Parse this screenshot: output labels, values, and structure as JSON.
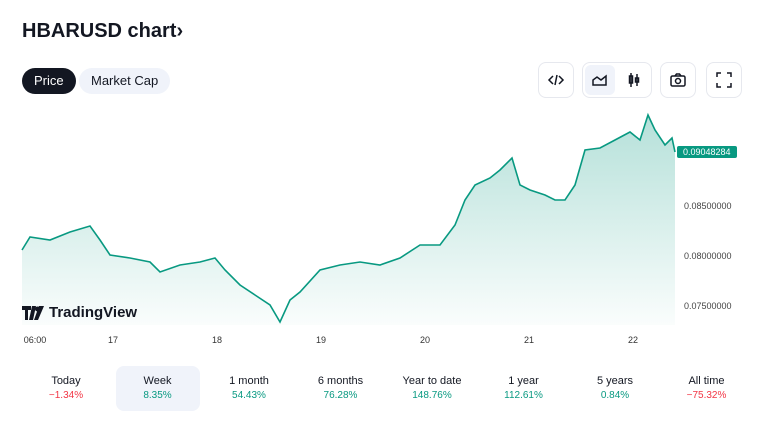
{
  "header": {
    "title": "HBARUSD chart›"
  },
  "tabs": [
    {
      "label": "Price",
      "active": true
    },
    {
      "label": "Market Cap",
      "active": false
    }
  ],
  "toolbar": [
    "code-icon",
    "area-chart-icon",
    "candles-icon",
    "camera-icon",
    "fullscreen-icon"
  ],
  "branding": "TradingView",
  "chart_data": {
    "type": "area",
    "x_ticks": [
      {
        "x": 16.25,
        "label": "06:00"
      },
      {
        "x": 17,
        "label": "17"
      },
      {
        "x": 18,
        "label": "18"
      },
      {
        "x": 19,
        "label": "19"
      },
      {
        "x": 20,
        "label": "20"
      },
      {
        "x": 21,
        "label": "21"
      },
      {
        "x": 22,
        "label": "22"
      }
    ],
    "y_ticks": [
      "0.07500000",
      "0.08000000",
      "0.08500000"
    ],
    "y_tick_values": [
      0.075,
      0.08,
      0.085
    ],
    "ylim": [
      0.0725,
      0.0945
    ],
    "xlim": [
      16.0,
      23.2
    ],
    "last_price": "0.09048284",
    "color": "#089981",
    "points": [
      [
        16.125,
        0.0807
      ],
      [
        16.202,
        0.082
      ],
      [
        16.394,
        0.0817
      ],
      [
        16.587,
        0.0825
      ],
      [
        16.779,
        0.0831
      ],
      [
        16.875,
        0.0817
      ],
      [
        16.971,
        0.0802
      ],
      [
        17.163,
        0.0799
      ],
      [
        17.356,
        0.0795
      ],
      [
        17.452,
        0.0785
      ],
      [
        17.644,
        0.0792
      ],
      [
        17.837,
        0.0795
      ],
      [
        17.981,
        0.0799
      ],
      [
        18.077,
        0.0787
      ],
      [
        18.221,
        0.0772
      ],
      [
        18.365,
        0.0762
      ],
      [
        18.51,
        0.0752
      ],
      [
        18.606,
        0.0735
      ],
      [
        18.702,
        0.0757
      ],
      [
        18.798,
        0.0765
      ],
      [
        18.99,
        0.0787
      ],
      [
        19.183,
        0.0792
      ],
      [
        19.375,
        0.0795
      ],
      [
        19.567,
        0.0792
      ],
      [
        19.76,
        0.0799
      ],
      [
        19.952,
        0.0812
      ],
      [
        20.144,
        0.0812
      ],
      [
        20.288,
        0.0832
      ],
      [
        20.385,
        0.0857
      ],
      [
        20.481,
        0.0872
      ],
      [
        20.625,
        0.0879
      ],
      [
        20.721,
        0.0887
      ],
      [
        20.837,
        0.0899
      ],
      [
        20.913,
        0.0872
      ],
      [
        21.01,
        0.0867
      ],
      [
        21.154,
        0.0862
      ],
      [
        21.25,
        0.0857
      ],
      [
        21.346,
        0.0857
      ],
      [
        21.442,
        0.0872
      ],
      [
        21.538,
        0.0907
      ],
      [
        21.683,
        0.0909
      ],
      [
        21.827,
        0.0917
      ],
      [
        21.971,
        0.0925
      ],
      [
        22.067,
        0.0917
      ],
      [
        22.144,
        0.0942
      ],
      [
        22.212,
        0.0927
      ],
      [
        22.308,
        0.0912
      ],
      [
        22.375,
        0.0919
      ],
      [
        22.404,
        0.0905
      ]
    ]
  },
  "periods": [
    {
      "label": "Today",
      "value": "−1.34%",
      "sign": "neg"
    },
    {
      "label": "Week",
      "value": "8.35%",
      "sign": "pos",
      "active": true
    },
    {
      "label": "1 month",
      "value": "54.43%",
      "sign": "pos"
    },
    {
      "label": "6 months",
      "value": "76.28%",
      "sign": "pos"
    },
    {
      "label": "Year to date",
      "value": "148.76%",
      "sign": "pos"
    },
    {
      "label": "1 year",
      "value": "112.61%",
      "sign": "pos"
    },
    {
      "label": "5 years",
      "value": "0.84%",
      "sign": "pos"
    },
    {
      "label": "All time",
      "value": "−75.32%",
      "sign": "neg"
    }
  ]
}
